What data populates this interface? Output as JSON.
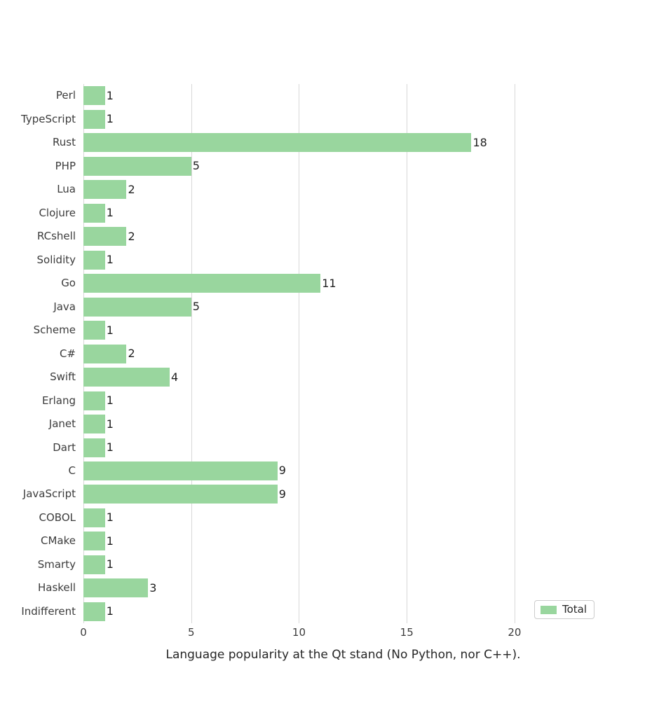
{
  "chart_data": {
    "type": "bar",
    "orientation": "horizontal",
    "title": "",
    "xlabel": "Language popularity at the Qt stand (No Python, nor C++).",
    "ylabel": "",
    "categories": [
      "Perl",
      "TypeScript",
      "Rust",
      "PHP",
      "Lua",
      "Clojure",
      "RCshell",
      "Solidity",
      "Go",
      "Java",
      "Scheme",
      "C#",
      "Swift",
      "Erlang",
      "Janet",
      "Dart",
      "C",
      "JavaScript",
      "COBOL",
      "CMake",
      "Smarty",
      "Haskell",
      "Indifferent"
    ],
    "series": [
      {
        "name": "Total",
        "values": [
          1,
          1,
          18,
          5,
          2,
          1,
          2,
          1,
          11,
          5,
          1,
          2,
          4,
          1,
          1,
          1,
          9,
          9,
          1,
          1,
          1,
          3,
          1
        ]
      }
    ],
    "value_labels": true,
    "x_ticks": [
      0,
      5,
      10,
      15,
      20
    ],
    "xlim": [
      0,
      24.1
    ],
    "grid": true,
    "legend": {
      "label": "Total",
      "position": "lower-right"
    },
    "colors": {
      "bar": "#99d69e",
      "grid": "#d7d7d7",
      "tick_text": "#3c3c3c",
      "value_text": "#1f1f1f",
      "axis_label_text": "#262626",
      "legend_border": "#cccccc",
      "background": "#ffffff"
    }
  }
}
